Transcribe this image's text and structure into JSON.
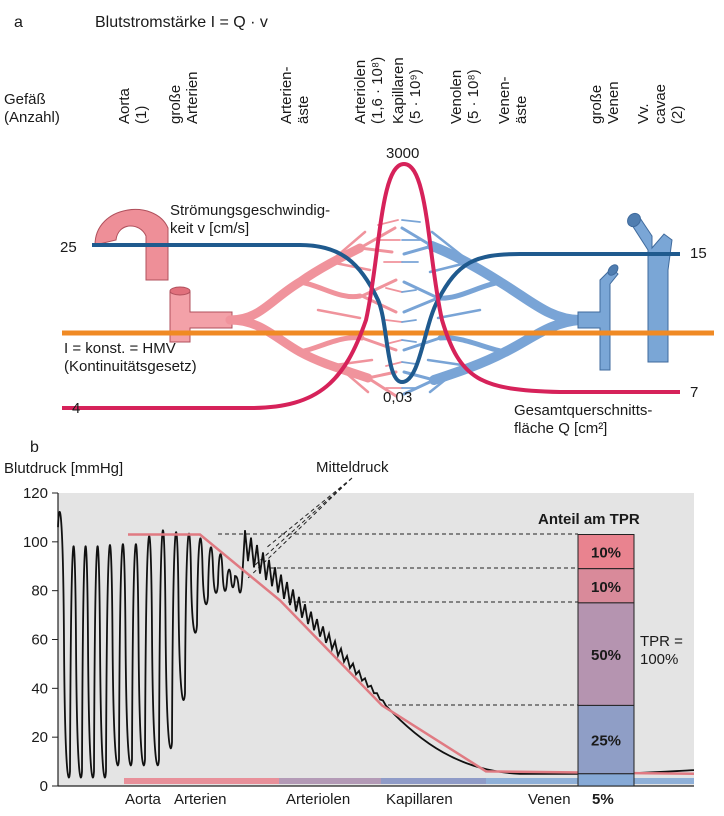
{
  "panel_a": {
    "panel_letter": "a",
    "formula": "Blutstromstärke I = Q · v",
    "vessel_header": [
      "Gefäß",
      "(Anzahl)"
    ],
    "vessels": [
      {
        "name": "Aorta",
        "count": "(1)"
      },
      {
        "name": "große",
        "name2": "Arterien"
      },
      {
        "name": "Arterien-",
        "name2": "äste"
      },
      {
        "name": "Arteriolen",
        "count": "(1,6 · 10⁸)"
      },
      {
        "name": "Kapillaren",
        "count": "(5 · 10⁹)"
      },
      {
        "name": "Venolen",
        "count": "(5 · 10⁸)"
      },
      {
        "name": "Venen-",
        "name2": "äste"
      },
      {
        "name": "große",
        "name2": "Venen"
      },
      {
        "name": "Vv.",
        "name2": "cavae",
        "count": "(2)"
      }
    ],
    "velocity_label": [
      "Strömungsgeschwindig-",
      "keit v [cm/s]"
    ],
    "constant_label": [
      "I = konst. = HMV",
      "(Kontinuitätsgesetz)"
    ],
    "area_label": [
      "Gesamtquerschnitts-",
      "fläche Q [cm²]"
    ],
    "value_labels": {
      "v_start": "25",
      "v_end": "15",
      "v_min": "0,03",
      "q_start": "4",
      "q_peak": "3000",
      "q_end": "7"
    },
    "colors": {
      "velocity": "#1f5a8e",
      "area": "#d6225a",
      "constant": "#f08a24",
      "arterial": "#f0969e",
      "venous": "#7aa6d6"
    }
  },
  "panel_b": {
    "panel_letter": "b",
    "y_label": "Blutdruck [mmHg]",
    "mean_label": "Mitteldruck",
    "tpr_title": "Anteil am TPR",
    "tpr_segments": [
      {
        "label": "10%",
        "color": "#e9838f"
      },
      {
        "label": "10%",
        "color": "#d98a9a"
      },
      {
        "label": "50%",
        "color": "#b594b0"
      },
      {
        "label": "25%",
        "color": "#8f9ec6"
      }
    ],
    "venous_share": "5%",
    "tpr_total": [
      "TPR =",
      "100%"
    ],
    "bottom_labels": [
      "Aorta",
      "Arterien",
      "Arteriolen",
      "Kapillaren",
      "Venen"
    ],
    "colors": {
      "background": "#e4e4e4",
      "mean": "#e07a82",
      "pressure": "#111111"
    },
    "chart_data": {
      "type": "line",
      "ylabel": "Blutdruck [mmHg]",
      "ylim": [
        0,
        120
      ],
      "yticks": [
        0,
        20,
        40,
        60,
        80,
        100,
        120
      ],
      "grid": false,
      "series": [
        {
          "name": "Mitteldruck",
          "values": [
            103,
            103,
            76,
            33,
            6,
            5
          ]
        }
      ],
      "categories": [
        "Aorta",
        "Arterien",
        "Arteriolen",
        "Kapillaren",
        "Venen",
        "Venen"
      ],
      "tpr_breakdown": [
        {
          "segment": "10%",
          "from": 103,
          "to": 89
        },
        {
          "segment": "10%",
          "from": 89,
          "to": 75
        },
        {
          "segment": "50%",
          "from": 75,
          "to": 33
        },
        {
          "segment": "25%",
          "from": 33,
          "to": 5
        },
        {
          "segment": "5%",
          "from": 5,
          "to": 0
        }
      ]
    }
  }
}
